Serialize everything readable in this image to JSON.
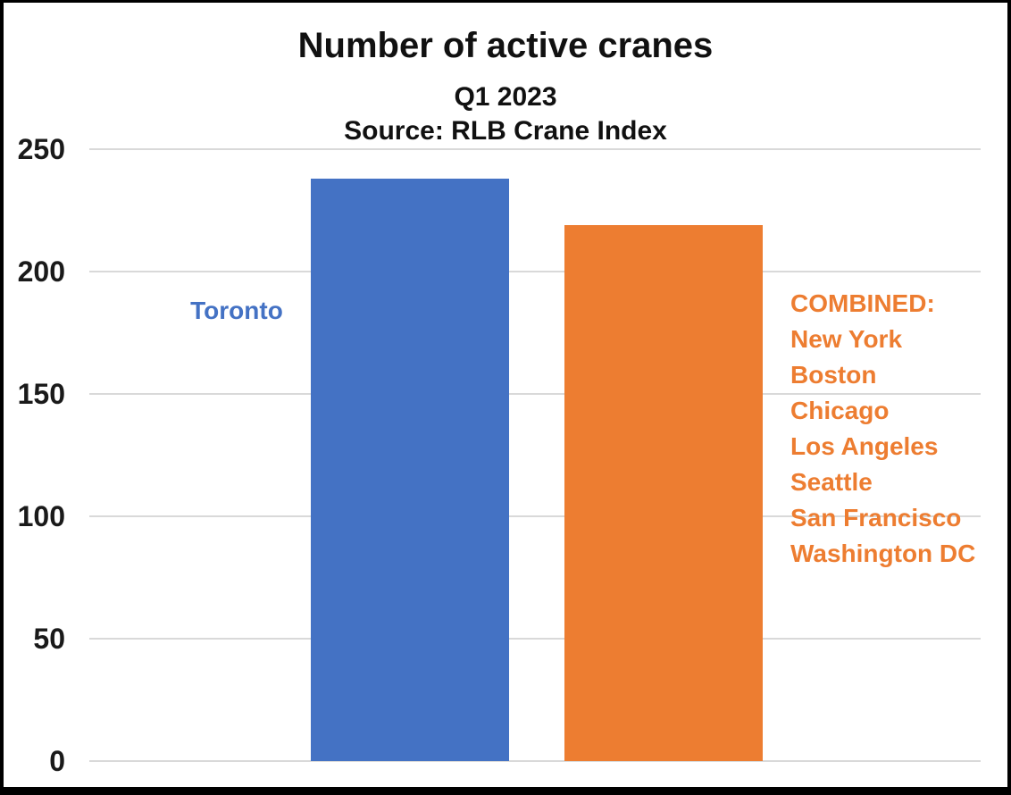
{
  "frame": {
    "background": "#ffffff",
    "border_color": "#000000"
  },
  "chart_data": {
    "type": "bar",
    "title": "Number of active cranes",
    "subtitle": "Q1 2023",
    "source": "Source: RLB Crane Index",
    "categories": [
      "Toronto",
      "COMBINED: New York, Boston, Chicago, Los Angeles, Seattle, San Francisco, Washington DC"
    ],
    "values": [
      238,
      219
    ],
    "bar_colors": [
      "#4472C4",
      "#ED7D31"
    ],
    "label_colors": [
      "#4472C4",
      "#ED7D31"
    ],
    "ylim": [
      0,
      250
    ],
    "yticks": [
      0,
      50,
      100,
      150,
      200,
      250
    ],
    "grid": true,
    "gridline_color": "#d9d9d9",
    "legend_position": "labels-beside-bars",
    "labels": {
      "toronto": "Toronto",
      "combined_lines": [
        "COMBINED:",
        "New York",
        "Boston",
        "Chicago",
        "Los Angeles",
        "Seattle",
        "San Francisco",
        "Washington DC"
      ]
    }
  }
}
